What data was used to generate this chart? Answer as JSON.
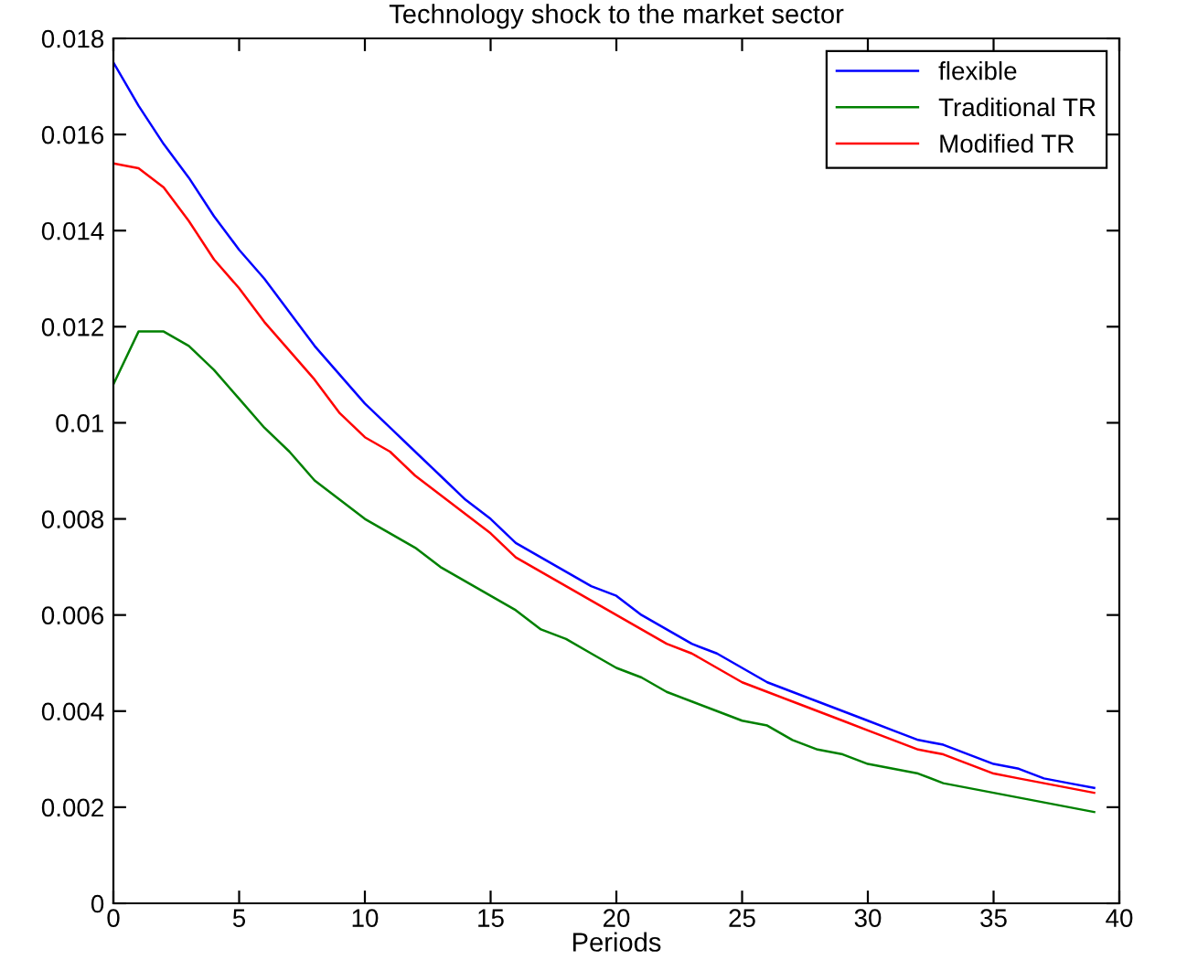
{
  "chart_data": {
    "type": "line",
    "title": "Technology shock to the market sector",
    "xlabel": "Periods",
    "x": [
      0,
      1,
      2,
      3,
      4,
      5,
      6,
      7,
      8,
      9,
      10,
      11,
      12,
      13,
      14,
      15,
      16,
      17,
      18,
      19,
      20,
      21,
      22,
      23,
      24,
      25,
      26,
      27,
      28,
      29,
      30,
      31,
      32,
      33,
      34,
      35,
      36,
      37,
      38,
      39
    ],
    "series": [
      {
        "name": "flexible",
        "color": "#0000ff",
        "values": [
          0.0175,
          0.0166,
          0.0158,
          0.0151,
          0.0143,
          0.0136,
          0.013,
          0.0123,
          0.0116,
          0.011,
          0.0104,
          0.0099,
          0.0094,
          0.0089,
          0.0084,
          0.008,
          0.0075,
          0.0072,
          0.0069,
          0.0066,
          0.0064,
          0.006,
          0.0057,
          0.0054,
          0.0052,
          0.0049,
          0.0046,
          0.0044,
          0.0042,
          0.004,
          0.0038,
          0.0036,
          0.0034,
          0.0033,
          0.0031,
          0.0029,
          0.0028,
          0.0026,
          0.0025,
          0.0024
        ]
      },
      {
        "name": "Traditional TR",
        "color": "#008000",
        "values": [
          0.0108,
          0.0119,
          0.0119,
          0.0116,
          0.0111,
          0.0105,
          0.0099,
          0.0094,
          0.0088,
          0.0084,
          0.008,
          0.0077,
          0.0074,
          0.007,
          0.0067,
          0.0064,
          0.0061,
          0.0057,
          0.0055,
          0.0052,
          0.0049,
          0.0047,
          0.0044,
          0.0042,
          0.004,
          0.0038,
          0.0037,
          0.0034,
          0.0032,
          0.0031,
          0.0029,
          0.0028,
          0.0027,
          0.0025,
          0.0024,
          0.0023,
          0.0022,
          0.0021,
          0.002,
          0.0019
        ]
      },
      {
        "name": "Modified TR",
        "color": "#ff0000",
        "values": [
          0.0154,
          0.0153,
          0.0149,
          0.0142,
          0.0134,
          0.0128,
          0.0121,
          0.0115,
          0.0109,
          0.0102,
          0.0097,
          0.0094,
          0.0089,
          0.0085,
          0.0081,
          0.0077,
          0.0072,
          0.0069,
          0.0066,
          0.0063,
          0.006,
          0.0057,
          0.0054,
          0.0052,
          0.0049,
          0.0046,
          0.0044,
          0.0042,
          0.004,
          0.0038,
          0.0036,
          0.0034,
          0.0032,
          0.0031,
          0.0029,
          0.0027,
          0.0026,
          0.0025,
          0.0024,
          0.0023
        ]
      }
    ],
    "xlim": [
      0,
      40
    ],
    "xticks": [
      0,
      5,
      10,
      15,
      20,
      25,
      30,
      35,
      40
    ],
    "ylim": [
      0,
      0.018
    ],
    "yticks": [
      {
        "value": 0,
        "label": "0"
      },
      {
        "value": 0.002,
        "label": "0.002"
      },
      {
        "value": 0.004,
        "label": "0.004"
      },
      {
        "value": 0.006,
        "label": "0.006"
      },
      {
        "value": 0.008,
        "label": "0.008"
      },
      {
        "value": 0.01,
        "label": "0.01"
      },
      {
        "value": 0.012,
        "label": "0.012"
      },
      {
        "value": 0.014,
        "label": "0.014"
      },
      {
        "value": 0.016,
        "label": "0.016"
      },
      {
        "value": 0.018,
        "label": "0.018"
      }
    ],
    "grid": false,
    "legend": "top right",
    "marker": "none",
    "line_style": "solid"
  }
}
